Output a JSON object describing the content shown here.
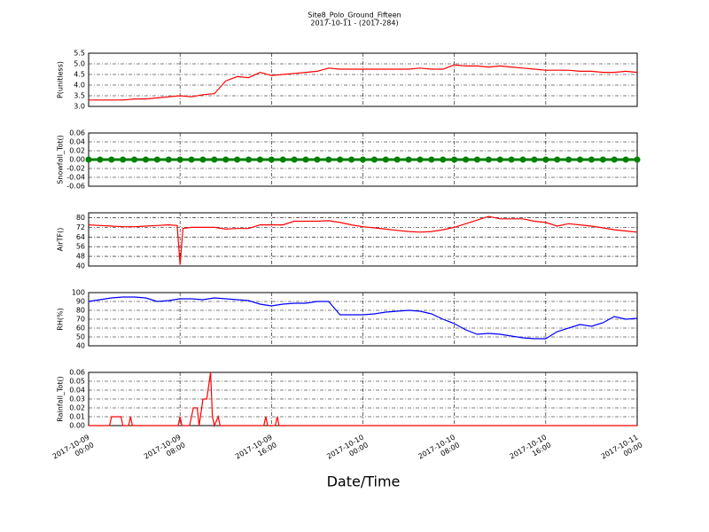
{
  "title": "Site8_Polo_Ground_Fifteen",
  "subtitle": "2017-10-11 - (2017-284)",
  "x_axis": {
    "label": "Date/Time",
    "xlim": [
      "2017-10-09 00:00",
      "2017-10-11 00:00"
    ],
    "xticks": [
      "2017-10-09 00:00",
      "2017-10-09 08:00",
      "2017-10-09 16:00",
      "2017-10-10 00:00",
      "2017-10-10 08:00",
      "2017-10-10 16:00",
      "2017-10-11 00:00"
    ]
  },
  "chart_data": [
    {
      "type": "line",
      "ylabel": "P(unitless)",
      "color": "#ff0000",
      "ylim": [
        3,
        5.5
      ],
      "yticks": [
        {
          "value": 3,
          "label": "3.0"
        },
        3.5,
        {
          "value": 4,
          "label": "4.0"
        },
        4.5,
        {
          "value": 5,
          "label": "5.0"
        },
        5.5
      ],
      "x": [
        "2017-10-09 00:00",
        "2017-10-09 01:00",
        "2017-10-09 02:00",
        "2017-10-09 03:00",
        "2017-10-09 04:00",
        "2017-10-09 05:00",
        "2017-10-09 06:00",
        "2017-10-09 07:00",
        "2017-10-09 08:00",
        "2017-10-09 09:00",
        "2017-10-09 10:00",
        "2017-10-09 11:00",
        "2017-10-09 12:00",
        "2017-10-09 13:00",
        "2017-10-09 14:00",
        "2017-10-09 15:00",
        "2017-10-09 16:00",
        "2017-10-09 17:00",
        "2017-10-09 18:00",
        "2017-10-09 19:00",
        "2017-10-09 20:00",
        "2017-10-09 21:00",
        "2017-10-09 22:00",
        "2017-10-09 23:00",
        "2017-10-10 00:00",
        "2017-10-10 01:00",
        "2017-10-10 02:00",
        "2017-10-10 03:00",
        "2017-10-10 04:00",
        "2017-10-10 05:00",
        "2017-10-10 06:00",
        "2017-10-10 07:00",
        "2017-10-10 08:00",
        "2017-10-10 09:00",
        "2017-10-10 10:00",
        "2017-10-10 11:00",
        "2017-10-10 12:00",
        "2017-10-10 13:00",
        "2017-10-10 14:00",
        "2017-10-10 15:00",
        "2017-10-10 16:00",
        "2017-10-10 17:00",
        "2017-10-10 18:00",
        "2017-10-10 19:00",
        "2017-10-10 20:00",
        "2017-10-10 21:00",
        "2017-10-10 22:00",
        "2017-10-10 23:00",
        "2017-10-11 00:00"
      ],
      "values": [
        3.3,
        3.3,
        3.3,
        3.3,
        3.35,
        3.35,
        3.4,
        3.45,
        3.5,
        3.45,
        3.55,
        3.6,
        4.2,
        4.4,
        4.35,
        4.6,
        4.45,
        4.5,
        4.55,
        4.6,
        4.65,
        4.8,
        4.75,
        4.75,
        4.75,
        4.75,
        4.75,
        4.75,
        4.75,
        4.8,
        4.75,
        4.75,
        4.95,
        4.9,
        4.9,
        4.85,
        4.9,
        4.85,
        4.8,
        4.75,
        4.7,
        4.7,
        4.7,
        4.65,
        4.65,
        4.6,
        4.6,
        4.65,
        4.6
      ]
    },
    {
      "type": "line",
      "ylabel": "Snowfall_Tot()",
      "color": "#008000",
      "marker": "o",
      "ylim": [
        -0.06,
        0.06
      ],
      "yticks": [
        -0.06,
        -0.04,
        -0.02,
        {
          "value": 0,
          "label": "0.00"
        },
        0.02,
        0.04,
        0.06
      ],
      "x": [
        "2017-10-09 00:00",
        "2017-10-09 01:00",
        "2017-10-09 02:00",
        "2017-10-09 03:00",
        "2017-10-09 04:00",
        "2017-10-09 05:00",
        "2017-10-09 06:00",
        "2017-10-09 07:00",
        "2017-10-09 08:00",
        "2017-10-09 09:00",
        "2017-10-09 10:00",
        "2017-10-09 11:00",
        "2017-10-09 12:00",
        "2017-10-09 13:00",
        "2017-10-09 14:00",
        "2017-10-09 15:00",
        "2017-10-09 16:00",
        "2017-10-09 17:00",
        "2017-10-09 18:00",
        "2017-10-09 19:00",
        "2017-10-09 20:00",
        "2017-10-09 21:00",
        "2017-10-09 22:00",
        "2017-10-09 23:00",
        "2017-10-10 00:00",
        "2017-10-10 01:00",
        "2017-10-10 02:00",
        "2017-10-10 03:00",
        "2017-10-10 04:00",
        "2017-10-10 05:00",
        "2017-10-10 06:00",
        "2017-10-10 07:00",
        "2017-10-10 08:00",
        "2017-10-10 09:00",
        "2017-10-10 10:00",
        "2017-10-10 11:00",
        "2017-10-10 12:00",
        "2017-10-10 13:00",
        "2017-10-10 14:00",
        "2017-10-10 15:00",
        "2017-10-10 16:00",
        "2017-10-10 17:00",
        "2017-10-10 18:00",
        "2017-10-10 19:00",
        "2017-10-10 20:00",
        "2017-10-10 21:00",
        "2017-10-10 22:00",
        "2017-10-10 23:00",
        "2017-10-11 00:00"
      ],
      "values": [
        0,
        0,
        0,
        0,
        0,
        0,
        0,
        0,
        0,
        0,
        0,
        0,
        0,
        0,
        0,
        0,
        0,
        0,
        0,
        0,
        0,
        0,
        0,
        0,
        0,
        0,
        0,
        0,
        0,
        0,
        0,
        0,
        0,
        0,
        0,
        0,
        0,
        0,
        0,
        0,
        0,
        0,
        0,
        0,
        0,
        0,
        0,
        0,
        0
      ]
    },
    {
      "type": "line",
      "ylabel": "AirTF()",
      "color": "#ff0000",
      "ylim": [
        40,
        84
      ],
      "yticks": [
        40,
        48,
        56,
        64,
        72,
        80
      ],
      "x": [
        "2017-10-09 00:00",
        "2017-10-09 01:00",
        "2017-10-09 02:00",
        "2017-10-09 03:00",
        "2017-10-09 04:00",
        "2017-10-09 05:00",
        "2017-10-09 06:00",
        "2017-10-09 07:00",
        "2017-10-09 07:45",
        "2017-10-09 08:00",
        "2017-10-09 08:15",
        "2017-10-09 09:00",
        "2017-10-09 10:00",
        "2017-10-09 11:00",
        "2017-10-09 12:00",
        "2017-10-09 13:00",
        "2017-10-09 14:00",
        "2017-10-09 15:00",
        "2017-10-09 16:00",
        "2017-10-09 17:00",
        "2017-10-09 18:00",
        "2017-10-09 19:00",
        "2017-10-09 20:00",
        "2017-10-09 21:00",
        "2017-10-09 22:00",
        "2017-10-09 23:00",
        "2017-10-10 00:00",
        "2017-10-10 01:00",
        "2017-10-10 02:00",
        "2017-10-10 03:00",
        "2017-10-10 04:00",
        "2017-10-10 05:00",
        "2017-10-10 06:00",
        "2017-10-10 07:00",
        "2017-10-10 08:00",
        "2017-10-10 09:00",
        "2017-10-10 10:00",
        "2017-10-10 11:00",
        "2017-10-10 12:00",
        "2017-10-10 13:00",
        "2017-10-10 14:00",
        "2017-10-10 15:00",
        "2017-10-10 16:00",
        "2017-10-10 17:00",
        "2017-10-10 18:00",
        "2017-10-10 19:00",
        "2017-10-10 20:00",
        "2017-10-10 21:00",
        "2017-10-10 22:00",
        "2017-10-10 23:00",
        "2017-10-11 00:00"
      ],
      "values": [
        74,
        73.5,
        73,
        72.5,
        72.5,
        73,
        73.5,
        74,
        73.5,
        41,
        71,
        72,
        72,
        72,
        70.5,
        71,
        71,
        74,
        74,
        74,
        77,
        77,
        77,
        77.5,
        76,
        74,
        72.5,
        71.5,
        70.5,
        69.5,
        68.5,
        68,
        68.5,
        70,
        72,
        75,
        78,
        81,
        79,
        79,
        79,
        77,
        76,
        73,
        75,
        74,
        73,
        71.5,
        70,
        69,
        68
      ]
    },
    {
      "type": "line",
      "ylabel": "RH(%)",
      "color": "#0000ff",
      "ylim": [
        40,
        100
      ],
      "yticks": [
        40,
        50,
        60,
        70,
        80,
        90,
        100
      ],
      "x": [
        "2017-10-09 00:00",
        "2017-10-09 01:00",
        "2017-10-09 02:00",
        "2017-10-09 03:00",
        "2017-10-09 04:00",
        "2017-10-09 05:00",
        "2017-10-09 06:00",
        "2017-10-09 07:00",
        "2017-10-09 08:00",
        "2017-10-09 09:00",
        "2017-10-09 10:00",
        "2017-10-09 11:00",
        "2017-10-09 12:00",
        "2017-10-09 13:00",
        "2017-10-09 14:00",
        "2017-10-09 15:00",
        "2017-10-09 16:00",
        "2017-10-09 17:00",
        "2017-10-09 18:00",
        "2017-10-09 19:00",
        "2017-10-09 20:00",
        "2017-10-09 21:00",
        "2017-10-09 22:00",
        "2017-10-09 23:00",
        "2017-10-10 00:00",
        "2017-10-10 01:00",
        "2017-10-10 02:00",
        "2017-10-10 03:00",
        "2017-10-10 04:00",
        "2017-10-10 05:00",
        "2017-10-10 06:00",
        "2017-10-10 07:00",
        "2017-10-10 08:00",
        "2017-10-10 09:00",
        "2017-10-10 10:00",
        "2017-10-10 11:00",
        "2017-10-10 12:00",
        "2017-10-10 13:00",
        "2017-10-10 14:00",
        "2017-10-10 15:00",
        "2017-10-10 16:00",
        "2017-10-10 17:00",
        "2017-10-10 18:00",
        "2017-10-10 19:00",
        "2017-10-10 20:00",
        "2017-10-10 21:00",
        "2017-10-10 22:00",
        "2017-10-10 23:00",
        "2017-10-11 00:00"
      ],
      "values": [
        90,
        92,
        94,
        95,
        95,
        94,
        90,
        91,
        93,
        93,
        92,
        94,
        93,
        92,
        91,
        87,
        85,
        87,
        88,
        88,
        90,
        90,
        75,
        75,
        75,
        76,
        78,
        79,
        80,
        79,
        76,
        70,
        65,
        58,
        53,
        54,
        53,
        51,
        49,
        48,
        48,
        56,
        60,
        64,
        62,
        66,
        73,
        70,
        71
      ]
    },
    {
      "type": "line",
      "ylabel": "Rainfall_Tot()",
      "color": "#ff0000",
      "ylim": [
        0,
        0.06
      ],
      "yticks": [
        {
          "value": 0,
          "label": "0.00"
        },
        0.01,
        0.02,
        0.03,
        0.04,
        0.05,
        0.06
      ],
      "x": [
        "2017-10-09 00:00",
        "2017-10-09 01:50",
        "2017-10-09 02:00",
        "2017-10-09 02:50",
        "2017-10-09 03:00",
        "2017-10-09 03:30",
        "2017-10-09 03:40",
        "2017-10-09 03:50",
        "2017-10-09 07:50",
        "2017-10-09 08:00",
        "2017-10-09 08:10",
        "2017-10-09 08:50",
        "2017-10-09 09:10",
        "2017-10-09 09:30",
        "2017-10-09 09:40",
        "2017-10-09 10:00",
        "2017-10-09 10:20",
        "2017-10-09 10:40",
        "2017-10-09 10:50",
        "2017-10-09 11:00",
        "2017-10-09 11:20",
        "2017-10-09 11:30",
        "2017-10-09 15:20",
        "2017-10-09 15:30",
        "2017-10-09 15:40",
        "2017-10-09 16:20",
        "2017-10-09 16:30",
        "2017-10-09 16:40",
        "2017-10-11 00:00"
      ],
      "values": [
        0,
        0,
        0.01,
        0.01,
        0,
        0,
        0.01,
        0,
        0,
        0.01,
        0,
        0,
        0.02,
        0.02,
        0,
        0.03,
        0.03,
        0.06,
        0.01,
        0,
        0.01,
        0,
        0,
        0.01,
        0,
        0,
        0.01,
        0,
        0
      ]
    }
  ]
}
